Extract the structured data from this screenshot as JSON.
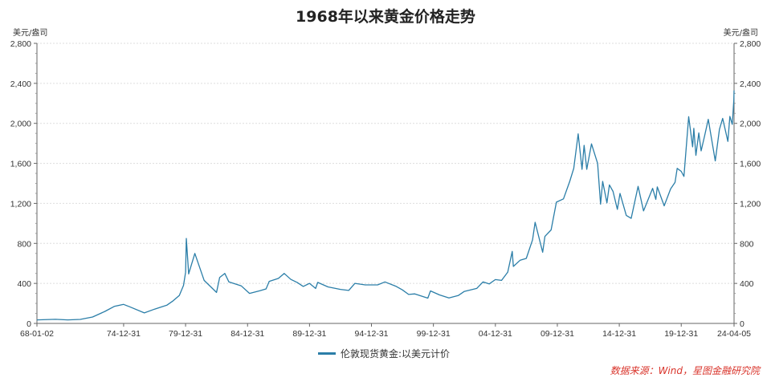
{
  "chart_data": {
    "type": "line",
    "title": "1968年以来黄金价格走势",
    "y_unit_left": "美元/盎司",
    "y_unit_right": "美元/盎司",
    "ylim": [
      0,
      2800
    ],
    "y_ticks": [
      "0",
      "400",
      "800",
      "1,200",
      "1,600",
      "2,000",
      "2,400",
      "2,800"
    ],
    "x_tick_labels": [
      {
        "label": "68-01-02",
        "date": "1968-01-02"
      },
      {
        "label": "74-12-31",
        "date": "1974-12-31"
      },
      {
        "label": "79-12-31",
        "date": "1979-12-31"
      },
      {
        "label": "84-12-31",
        "date": "1984-12-31"
      },
      {
        "label": "89-12-31",
        "date": "1989-12-31"
      },
      {
        "label": "94-12-31",
        "date": "1994-12-31"
      },
      {
        "label": "99-12-31",
        "date": "1999-12-31"
      },
      {
        "label": "04-12-31",
        "date": "2004-12-31"
      },
      {
        "label": "09-12-31",
        "date": "2009-12-31"
      },
      {
        "label": "14-12-31",
        "date": "2014-12-31"
      },
      {
        "label": "19-12-31",
        "date": "2019-12-31"
      },
      {
        "label": "24-04-05",
        "date": "2024-04-05"
      }
    ],
    "grid": true,
    "legend_position": "bottom-center",
    "series": [
      {
        "name": "伦敦现货黄金:以美元计价",
        "color": "#2b7ea8",
        "points": [
          [
            "1968-01-02",
            35
          ],
          [
            "1969-06-30",
            41
          ],
          [
            "1970-06-30",
            35
          ],
          [
            "1971-06-30",
            40
          ],
          [
            "1972-06-30",
            64
          ],
          [
            "1973-06-30",
            120
          ],
          [
            "1974-03-31",
            170
          ],
          [
            "1974-12-31",
            190
          ],
          [
            "1975-06-30",
            166
          ],
          [
            "1976-08-31",
            105
          ],
          [
            "1977-06-30",
            143
          ],
          [
            "1978-06-30",
            183
          ],
          [
            "1978-12-31",
            226
          ],
          [
            "1979-06-30",
            280
          ],
          [
            "1979-10-31",
            380
          ],
          [
            "1979-12-31",
            512
          ],
          [
            "1980-01-21",
            850
          ],
          [
            "1980-03-31",
            495
          ],
          [
            "1980-09-30",
            700
          ],
          [
            "1981-06-30",
            430
          ],
          [
            "1982-06-30",
            310
          ],
          [
            "1982-09-30",
            460
          ],
          [
            "1983-02-28",
            500
          ],
          [
            "1983-06-30",
            415
          ],
          [
            "1984-06-30",
            375
          ],
          [
            "1985-02-28",
            300
          ],
          [
            "1985-12-31",
            327
          ],
          [
            "1986-06-30",
            345
          ],
          [
            "1986-09-30",
            420
          ],
          [
            "1987-06-30",
            450
          ],
          [
            "1987-12-14",
            500
          ],
          [
            "1988-06-30",
            440
          ],
          [
            "1988-12-31",
            410
          ],
          [
            "1989-06-30",
            370
          ],
          [
            "1989-12-31",
            400
          ],
          [
            "1990-06-30",
            350
          ],
          [
            "1990-08-31",
            410
          ],
          [
            "1991-06-30",
            365
          ],
          [
            "1992-06-30",
            340
          ],
          [
            "1993-02-28",
            330
          ],
          [
            "1993-08-31",
            400
          ],
          [
            "1994-06-30",
            385
          ],
          [
            "1995-06-30",
            385
          ],
          [
            "1996-02-02",
            415
          ],
          [
            "1996-12-31",
            370
          ],
          [
            "1997-06-30",
            335
          ],
          [
            "1997-12-31",
            290
          ],
          [
            "1998-06-30",
            295
          ],
          [
            "1999-07-20",
            253
          ],
          [
            "1999-10-05",
            325
          ],
          [
            "2000-06-30",
            285
          ],
          [
            "2001-04-02",
            255
          ],
          [
            "2001-12-31",
            278
          ],
          [
            "2002-06-30",
            320
          ],
          [
            "2003-06-30",
            350
          ],
          [
            "2003-12-31",
            415
          ],
          [
            "2004-06-30",
            395
          ],
          [
            "2004-12-31",
            438
          ],
          [
            "2005-06-30",
            430
          ],
          [
            "2005-12-31",
            513
          ],
          [
            "2006-05-12",
            720
          ],
          [
            "2006-06-14",
            570
          ],
          [
            "2006-12-31",
            632
          ],
          [
            "2007-06-30",
            650
          ],
          [
            "2007-12-31",
            836
          ],
          [
            "2008-03-17",
            1011
          ],
          [
            "2008-10-24",
            712
          ],
          [
            "2008-12-31",
            870
          ],
          [
            "2009-06-30",
            935
          ],
          [
            "2009-12-03",
            1212
          ],
          [
            "2010-06-30",
            1245
          ],
          [
            "2010-12-31",
            1420
          ],
          [
            "2011-04-29",
            1550
          ],
          [
            "2011-09-05",
            1895
          ],
          [
            "2011-12-29",
            1540
          ],
          [
            "2012-02-29",
            1780
          ],
          [
            "2012-05-16",
            1540
          ],
          [
            "2012-10-04",
            1795
          ],
          [
            "2013-03-31",
            1600
          ],
          [
            "2013-06-28",
            1192
          ],
          [
            "2013-08-28",
            1420
          ],
          [
            "2013-12-31",
            1205
          ],
          [
            "2014-03-14",
            1385
          ],
          [
            "2014-06-30",
            1320
          ],
          [
            "2014-11-05",
            1140
          ],
          [
            "2015-01-22",
            1300
          ],
          [
            "2015-07-24",
            1080
          ],
          [
            "2015-12-17",
            1050
          ],
          [
            "2016-07-06",
            1370
          ],
          [
            "2016-12-15",
            1125
          ],
          [
            "2017-09-08",
            1350
          ],
          [
            "2017-12-12",
            1240
          ],
          [
            "2018-01-25",
            1365
          ],
          [
            "2018-08-16",
            1175
          ],
          [
            "2019-02-20",
            1345
          ],
          [
            "2019-06-30",
            1410
          ],
          [
            "2019-09-04",
            1550
          ],
          [
            "2019-12-31",
            1520
          ],
          [
            "2020-03-19",
            1470
          ],
          [
            "2020-08-06",
            2067
          ],
          [
            "2020-11-30",
            1765
          ],
          [
            "2021-01-05",
            1950
          ],
          [
            "2021-03-08",
            1680
          ],
          [
            "2021-06-01",
            1905
          ],
          [
            "2021-08-09",
            1725
          ],
          [
            "2021-11-16",
            1870
          ],
          [
            "2022-03-08",
            2040
          ],
          [
            "2022-09-28",
            1625
          ],
          [
            "2023-01-31",
            1940
          ],
          [
            "2023-05-04",
            2050
          ],
          [
            "2023-10-05",
            1820
          ],
          [
            "2023-12-04",
            2070
          ],
          [
            "2024-02-14",
            1990
          ],
          [
            "2024-03-28",
            2230
          ],
          [
            "2024-04-05",
            2330
          ]
        ]
      }
    ]
  },
  "source_note": "数据来源：Wind，星图金融研究院"
}
